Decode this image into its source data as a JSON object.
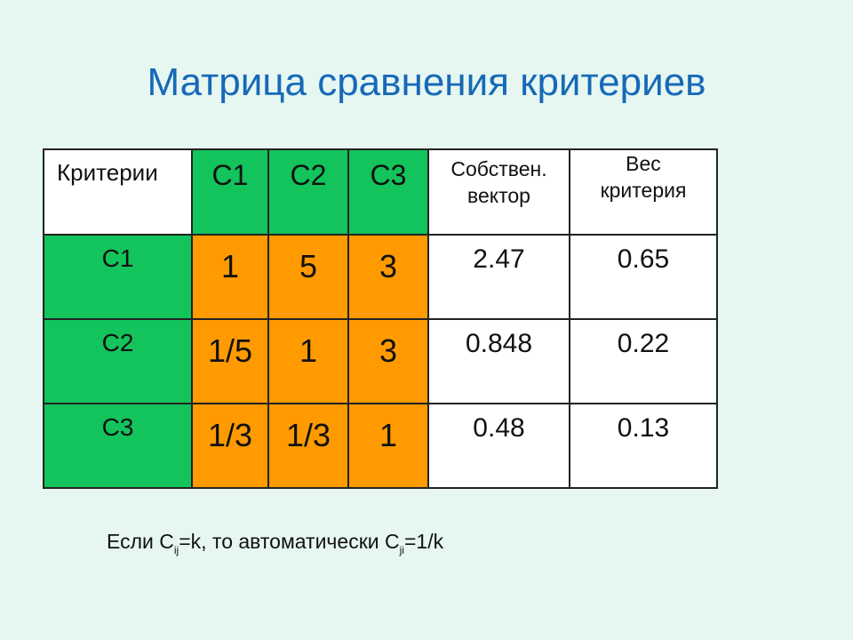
{
  "title": "Матрица сравнения критериев",
  "table": {
    "header": {
      "criteria": "Критерии",
      "c1": "C1",
      "c2": "C2",
      "c3": "C3",
      "eigen_line1": "Собствен.",
      "eigen_line2": "вектор",
      "weight_line1": "Вес",
      "weight_line2": "критерия"
    },
    "rows": [
      {
        "label": "C1",
        "v1": "1",
        "v2": "5",
        "v3": "3",
        "eigen": "2.47",
        "weight": "0.65"
      },
      {
        "label": "C2",
        "v1": "1/5",
        "v2": "1",
        "v3": "3",
        "eigen": "0.848",
        "weight": "0.22"
      },
      {
        "label": "C3",
        "v1": "1/3",
        "v2": "1/3",
        "v3": "1",
        "eigen": "0.48",
        "weight": "0.13"
      }
    ]
  },
  "note": {
    "part1": "Если C",
    "sub1": "ij",
    "part2": "=k, то автоматически C",
    "sub2": "ji",
    "part3": "=1/k"
  },
  "colors": {
    "background": "#e6f7f1",
    "title": "#1769b8",
    "green": "#13c35b",
    "orange": "#ff9a00"
  }
}
